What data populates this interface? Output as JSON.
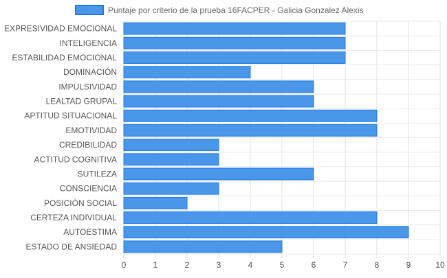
{
  "chart_data": {
    "type": "bar",
    "orientation": "horizontal",
    "categories": [
      "EXPRESIVIDAD EMOCIONAL",
      "INTELIGENCIA",
      "ESTABILIDAD EMOCIONAL",
      "DOMINACIÓN",
      "IMPULSIVIDAD",
      "LEALTAD GRUPAL",
      "APTITUD SITUACIONAL",
      "EMOTIVIDAD",
      "CREDIBILIDAD",
      "ACTITUD COGNITIVA",
      "SUTILEZA",
      "CONSCIENCIA",
      "POSICIÓN SOCIAL",
      "CERTEZA INDIVIDUAL",
      "AUTOESTIMA",
      "ESTADO DE ANSIEDAD"
    ],
    "series": [
      {
        "name": "Puntaje por criterio de la prueba 16FACPER - Galicia Gonzalez Alexis",
        "values": [
          7,
          7,
          7,
          4,
          6,
          6,
          8,
          8,
          3,
          3,
          6,
          3,
          2,
          8,
          9,
          5
        ],
        "color": "#4a97ea",
        "border_color": "#1e7ae0"
      }
    ],
    "xlim": [
      0,
      10
    ],
    "x_ticks": [
      "0",
      "1",
      "2",
      "3",
      "4",
      "5",
      "6",
      "7",
      "8",
      "9",
      "10"
    ],
    "grid": true,
    "legend_position": "top"
  }
}
